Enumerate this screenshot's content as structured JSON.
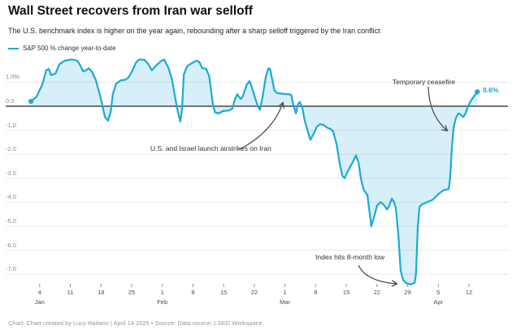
{
  "header": {
    "title": "Wall Street recovers from Iran war selloff",
    "subtitle": "The U.S. benchmark index is higher on the year again, rebounding after a sharp selloff triggered by the Iran conflict"
  },
  "legend": {
    "label": "S&P 500 % change year-to-date"
  },
  "annotations": {
    "airstrikes": "U.S. and Israel launch airstrikes on Iran",
    "ceasefire": "Temporary ceasefire",
    "low": "Index hits 8-month low"
  },
  "end_label": "0.6%",
  "footer": {
    "credit": "Chart: Chart created by Lucy Raitano | April 14 2025 • Source: Data source: LSEG Workspace"
  },
  "colors": {
    "line": "#1ca9d6",
    "fill": "rgba(28,169,216,0.18)",
    "zero_line": "#616161",
    "grid": "#e8e8e8",
    "tick": "#8f8f8f",
    "arrow": "#444444",
    "end_label": "#1a9fd0"
  },
  "chart_data": {
    "type": "area",
    "title": "S&P 500 % change year-to-date",
    "legend_position": "top-left",
    "grid": true,
    "x_axis": {
      "unit": "date",
      "start_date": "Jan 2",
      "end_date": "Apr 14",
      "ticks": [
        {
          "day": 2,
          "label": "4"
        },
        {
          "day": 9,
          "label": "11"
        },
        {
          "day": 16,
          "label": "18"
        },
        {
          "day": 23,
          "label": "25"
        },
        {
          "day": 30,
          "label": "1"
        },
        {
          "day": 37,
          "label": "8"
        },
        {
          "day": 44,
          "label": "15"
        },
        {
          "day": 51,
          "label": "22"
        },
        {
          "day": 58,
          "label": "1"
        },
        {
          "day": 65,
          "label": "8"
        },
        {
          "day": 72,
          "label": "15"
        },
        {
          "day": 79,
          "label": "22"
        },
        {
          "day": 86,
          "label": "29"
        },
        {
          "day": 93,
          "label": "5"
        },
        {
          "day": 100,
          "label": "12"
        }
      ],
      "months": [
        {
          "day": 2,
          "label": "Jan"
        },
        {
          "day": 30,
          "label": "Feb"
        },
        {
          "day": 58,
          "label": "Mar"
        },
        {
          "day": 93,
          "label": "Apr"
        }
      ]
    },
    "y_axis": {
      "unit": "%",
      "range": [
        -7.6,
        2.0
      ],
      "ticks": [
        {
          "value": 1,
          "label": "1.0%"
        },
        {
          "value": 0,
          "label": "0.0"
        },
        {
          "value": -1,
          "label": "-1.0"
        },
        {
          "value": -2,
          "label": "-2.0"
        },
        {
          "value": -3,
          "label": "-3.0"
        },
        {
          "value": -4,
          "label": "-4.0"
        },
        {
          "value": -5,
          "label": "-5.0"
        },
        {
          "value": -6,
          "label": "-6.0"
        },
        {
          "value": -7,
          "label": "-7.0"
        }
      ]
    },
    "series": [
      {
        "name": "S&P 500 % change year-to-date",
        "points": [
          [
            0,
            0.2
          ],
          [
            1.3,
            0.4
          ],
          [
            2.6,
            0.9
          ],
          [
            3.5,
            1.5
          ],
          [
            4.1,
            1.55
          ],
          [
            4.6,
            1.3
          ],
          [
            5.6,
            1.35
          ],
          [
            6.5,
            1.75
          ],
          [
            7.8,
            1.9
          ],
          [
            9.3,
            1.95
          ],
          [
            10.6,
            1.9
          ],
          [
            11.3,
            1.7
          ],
          [
            11.9,
            1.45
          ],
          [
            12.6,
            1.5
          ],
          [
            13.2,
            1.58
          ],
          [
            13.9,
            1.45
          ],
          [
            14.8,
            1.1
          ],
          [
            16,
            0.3
          ],
          [
            16.9,
            -0.45
          ],
          [
            17.6,
            -0.6
          ],
          [
            18.2,
            -0.25
          ],
          [
            18.7,
            0.5
          ],
          [
            19.5,
            0.95
          ],
          [
            20.5,
            1.08
          ],
          [
            21.5,
            1.1
          ],
          [
            22.3,
            1.2
          ],
          [
            23.2,
            1.5
          ],
          [
            24.1,
            1.85
          ],
          [
            24.8,
            1.95
          ],
          [
            26,
            1.93
          ],
          [
            26.8,
            1.75
          ],
          [
            27.6,
            1.5
          ],
          [
            28.6,
            1.7
          ],
          [
            29.7,
            1.88
          ],
          [
            30.4,
            1.95
          ],
          [
            31.4,
            1.6
          ],
          [
            32.2,
            1.12
          ],
          [
            32.8,
            0.5
          ],
          [
            33.4,
            -0.1
          ],
          [
            34.1,
            -0.64
          ],
          [
            34.5,
            -0.1
          ],
          [
            34.9,
            1.3
          ],
          [
            35.4,
            1.56
          ],
          [
            35.8,
            1.69
          ],
          [
            36.7,
            1.79
          ],
          [
            37.7,
            1.89
          ],
          [
            38.4,
            1.86
          ],
          [
            39.1,
            1.59
          ],
          [
            40,
            1.56
          ],
          [
            40.7,
            1.25
          ],
          [
            41.1,
            0.71
          ],
          [
            41.5,
            0.13
          ],
          [
            42,
            -0.25
          ],
          [
            42.8,
            -0.3
          ],
          [
            43.9,
            -0.2
          ],
          [
            45.2,
            -0.18
          ],
          [
            46,
            -0.1
          ],
          [
            46.6,
            0.3
          ],
          [
            47.1,
            0.5
          ],
          [
            47.9,
            0.3
          ],
          [
            48.4,
            0.42
          ],
          [
            49.2,
            0.87
          ],
          [
            49.9,
            1.05
          ],
          [
            50.6,
            0.7
          ],
          [
            51.3,
            0.27
          ],
          [
            51.8,
            0
          ],
          [
            52.3,
            -0.15
          ],
          [
            52.9,
            0.4
          ],
          [
            53.6,
            1.2
          ],
          [
            54.2,
            1.58
          ],
          [
            54.6,
            1.55
          ],
          [
            55.1,
            1.1
          ],
          [
            55.6,
            0.65
          ],
          [
            56.2,
            0.55
          ],
          [
            57.5,
            0.52
          ],
          [
            58.6,
            0.5
          ],
          [
            59.4,
            0.48
          ],
          [
            59.9,
            0.05
          ],
          [
            60.5,
            -0.3
          ],
          [
            61,
            0.1
          ],
          [
            61.4,
            0.18
          ],
          [
            62,
            -0.1
          ],
          [
            62.5,
            -0.6
          ],
          [
            63.3,
            -1.1
          ],
          [
            63.8,
            -1.4
          ],
          [
            64.6,
            -1.12
          ],
          [
            65.3,
            -0.85
          ],
          [
            66,
            -0.75
          ],
          [
            66.8,
            -0.78
          ],
          [
            67.7,
            -0.9
          ],
          [
            68.4,
            -0.95
          ],
          [
            69,
            -1.05
          ],
          [
            69.8,
            -1.6
          ],
          [
            70.5,
            -2.4
          ],
          [
            71.1,
            -2.9
          ],
          [
            71.6,
            -3.0
          ],
          [
            72.4,
            -2.7
          ],
          [
            73.1,
            -2.45
          ],
          [
            73.7,
            -2.25
          ],
          [
            74.2,
            -2.05
          ],
          [
            74.8,
            -2.35
          ],
          [
            75.3,
            -3.0
          ],
          [
            75.9,
            -3.45
          ],
          [
            76.4,
            -3.6
          ],
          [
            76.8,
            -3.7
          ],
          [
            77.4,
            -4.55
          ],
          [
            77.7,
            -5.0
          ],
          [
            78.3,
            -4.65
          ],
          [
            79,
            -4.15
          ],
          [
            79.8,
            -4.0
          ],
          [
            80.5,
            -4.1
          ],
          [
            81.3,
            -4.3
          ],
          [
            81.8,
            -4.15
          ],
          [
            82.4,
            -3.85
          ],
          [
            82.9,
            -4.0
          ],
          [
            83.3,
            -4.25
          ],
          [
            83.9,
            -5.4
          ],
          [
            84.4,
            -6.85
          ],
          [
            85,
            -7.25
          ],
          [
            85.9,
            -7.4
          ],
          [
            86.8,
            -7.42
          ],
          [
            87.6,
            -7.35
          ],
          [
            87.9,
            -7.0
          ],
          [
            88.3,
            -5.1
          ],
          [
            88.7,
            -4.2
          ],
          [
            89.2,
            -4.1
          ],
          [
            90.4,
            -4.0
          ],
          [
            91.7,
            -3.9
          ],
          [
            93.1,
            -3.65
          ],
          [
            94.2,
            -3.5
          ],
          [
            95.4,
            -3.45
          ],
          [
            95.7,
            -3.0
          ],
          [
            96.1,
            -1.7
          ],
          [
            96.5,
            -0.9
          ],
          [
            97,
            -0.5
          ],
          [
            97.6,
            -0.3
          ],
          [
            98.1,
            -0.35
          ],
          [
            98.7,
            -0.45
          ],
          [
            99.2,
            -0.3
          ],
          [
            99.8,
            0
          ],
          [
            100.5,
            0.25
          ],
          [
            101.3,
            0.45
          ],
          [
            101.9,
            0.6
          ]
        ]
      }
    ],
    "key_points": {
      "start_value_pct": 0.2,
      "end_value_pct": 0.6,
      "min_value_pct": -7.42
    }
  }
}
